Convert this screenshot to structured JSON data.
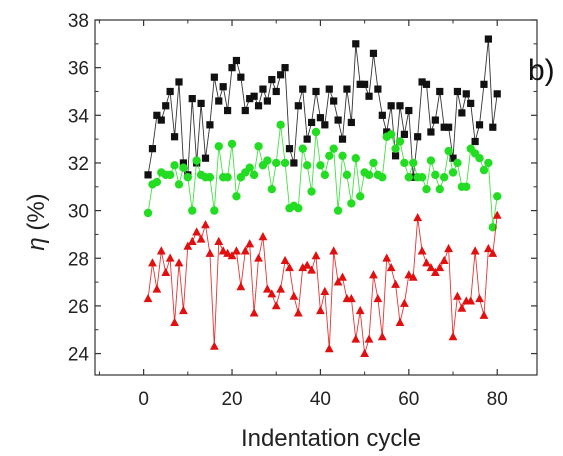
{
  "chart_data": {
    "type": "scatter",
    "panel_label": "b)",
    "xlabel": "Indentation cycle",
    "ylabel_symbol": "η",
    "ylabel_unit": " (%)",
    "xlim": [
      -11,
      89
    ],
    "ylim": [
      23.1,
      38
    ],
    "xticks": [
      0,
      20,
      40,
      60,
      80
    ],
    "yticks": [
      24,
      26,
      28,
      30,
      32,
      34,
      36,
      38
    ],
    "grid": false,
    "colors": {
      "black": "#111111",
      "green": "#22dd22",
      "red": "#e01010",
      "axis": "#333333"
    },
    "series": [
      {
        "color": "#111111",
        "marker": "square",
        "x": [
          1,
          2,
          3,
          4,
          5,
          6,
          7,
          8,
          9,
          10,
          11,
          12,
          13,
          14,
          15,
          16,
          17,
          18,
          19,
          20,
          21,
          22,
          23,
          24,
          25,
          26,
          27,
          28,
          29,
          30,
          31,
          32,
          33,
          34,
          35,
          36,
          37,
          38,
          39,
          40,
          41,
          42,
          43,
          44,
          45,
          46,
          47,
          48,
          49,
          50,
          51,
          52,
          53,
          54,
          55,
          56,
          57,
          58,
          59,
          60,
          61,
          62,
          63,
          64,
          65,
          66,
          67,
          68,
          69,
          70,
          71,
          72,
          73,
          74,
          75,
          76,
          77,
          78,
          79,
          80
        ],
        "y": [
          31.5,
          32.6,
          34.0,
          33.8,
          34.4,
          35.0,
          33.1,
          35.4,
          32.0,
          31.5,
          34.7,
          32.0,
          34.5,
          32.2,
          33.6,
          35.6,
          34.6,
          35.2,
          34.2,
          36.0,
          36.3,
          35.6,
          34.2,
          34.7,
          34.8,
          34.4,
          35.1,
          34.6,
          35.5,
          35.0,
          35.7,
          36.0,
          32.6,
          32.0,
          34.4,
          35.1,
          33.0,
          33.7,
          35.0,
          33.9,
          33.6,
          35.1,
          34.6,
          33.8,
          33.0,
          35.1,
          33.7,
          37.0,
          35.3,
          35.3,
          34.8,
          36.6,
          35.1,
          34.0,
          33.3,
          34.4,
          32.3,
          34.4,
          33.2,
          34.2,
          31.4,
          33.1,
          35.4,
          35.3,
          33.3,
          33.8,
          35.0,
          33.5,
          33.5,
          32.2,
          35.0,
          34.1,
          34.9,
          34.5,
          32.9,
          33.6,
          35.3,
          37.2,
          33.5,
          34.9
        ]
      },
      {
        "color": "#22dd22",
        "marker": "circle",
        "x": [
          1,
          2,
          3,
          4,
          5,
          6,
          7,
          8,
          9,
          10,
          11,
          12,
          13,
          14,
          15,
          16,
          17,
          18,
          19,
          20,
          21,
          22,
          23,
          24,
          25,
          26,
          27,
          28,
          29,
          30,
          31,
          32,
          33,
          34,
          35,
          36,
          37,
          38,
          39,
          40,
          41,
          42,
          43,
          44,
          45,
          46,
          47,
          48,
          49,
          50,
          51,
          52,
          53,
          54,
          55,
          56,
          57,
          58,
          59,
          60,
          61,
          62,
          63,
          64,
          65,
          66,
          67,
          68,
          69,
          70,
          71,
          72,
          73,
          74,
          75,
          76,
          77,
          78,
          79,
          80
        ],
        "y": [
          29.9,
          31.1,
          31.2,
          31.6,
          31.5,
          31.5,
          31.9,
          31.1,
          31.8,
          31.4,
          30.0,
          32.1,
          31.5,
          31.4,
          31.4,
          30.0,
          32.7,
          31.4,
          31.4,
          32.8,
          30.6,
          31.4,
          31.6,
          31.8,
          31.5,
          32.7,
          31.9,
          32.1,
          30.9,
          32.0,
          33.6,
          32.0,
          30.1,
          30.2,
          30.1,
          32.6,
          31.9,
          30.8,
          33.3,
          31.9,
          31.5,
          32.3,
          32.6,
          30.0,
          32.3,
          31.5,
          30.3,
          32.2,
          30.6,
          31.6,
          31.5,
          32.0,
          31.5,
          31.4,
          33.1,
          33.2,
          32.6,
          32.9,
          32.0,
          31.4,
          32.0,
          31.4,
          31.4,
          30.9,
          32.1,
          31.5,
          30.9,
          31.4,
          32.5,
          31.6,
          32.0,
          31.0,
          31.0,
          32.6,
          32.4,
          32.2,
          31.7,
          32.0,
          29.3,
          30.6
        ]
      },
      {
        "color": "#e01010",
        "marker": "triangle",
        "x": [
          1,
          2,
          3,
          4,
          5,
          6,
          7,
          8,
          9,
          10,
          11,
          12,
          13,
          14,
          15,
          16,
          17,
          18,
          19,
          20,
          21,
          22,
          23,
          24,
          25,
          26,
          27,
          28,
          29,
          30,
          31,
          32,
          33,
          34,
          35,
          36,
          37,
          38,
          39,
          40,
          41,
          42,
          43,
          44,
          45,
          46,
          47,
          48,
          49,
          50,
          51,
          52,
          53,
          54,
          55,
          56,
          57,
          58,
          59,
          60,
          61,
          62,
          63,
          64,
          65,
          66,
          67,
          68,
          69,
          70,
          71,
          72,
          73,
          74,
          75,
          76,
          77,
          78,
          79,
          80
        ],
        "y": [
          26.3,
          27.8,
          26.7,
          28.3,
          27.4,
          28.0,
          25.3,
          27.8,
          25.8,
          28.5,
          28.7,
          29.1,
          28.8,
          29.4,
          28.2,
          24.3,
          28.7,
          28.3,
          28.2,
          28.1,
          28.3,
          26.8,
          28.3,
          28.6,
          25.7,
          28.0,
          28.9,
          26.7,
          26.5,
          26.0,
          26.7,
          27.9,
          27.6,
          26.4,
          25.7,
          27.6,
          27.7,
          27.5,
          28.1,
          25.8,
          26.6,
          24.2,
          28.3,
          27.0,
          27.2,
          26.3,
          26.3,
          24.6,
          25.8,
          24.0,
          24.6,
          27.3,
          26.3,
          24.7,
          28.0,
          27.6,
          26.9,
          25.3,
          26.1,
          27.3,
          27.2,
          29.7,
          28.3,
          27.8,
          27.6,
          27.4,
          27.6,
          27.9,
          28.4,
          24.7,
          26.4,
          25.9,
          26.2,
          26.2,
          28.3,
          26.3,
          25.6,
          28.4,
          28.2,
          29.8
        ]
      }
    ]
  }
}
